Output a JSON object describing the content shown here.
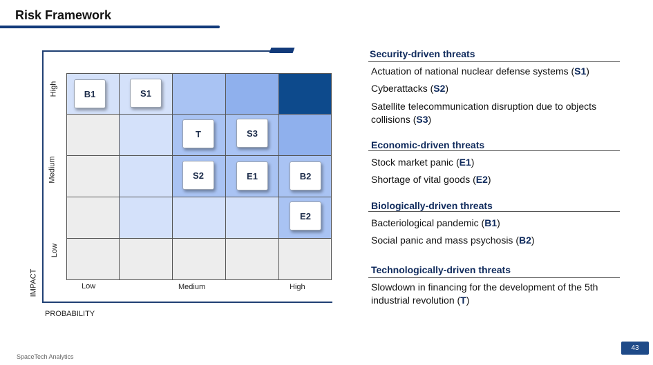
{
  "header": {
    "title": "Risk Framework"
  },
  "matrix": {
    "impact_levels": [
      "High",
      "Medium",
      "Low"
    ],
    "probability_levels": [
      "Low",
      "Medium",
      "High"
    ],
    "y_axis_title": "IMPACT",
    "x_axis_title": "PROBABILITY",
    "risks": {
      "B1": "B1",
      "S1": "S1",
      "T": "T",
      "S3": "S3",
      "S2": "S2",
      "E1": "E1",
      "B2": "B2",
      "E2": "E2"
    },
    "colors": {
      "darkest": "#0d4a8c",
      "dark": "#8fb0ed",
      "mid": "#a9c3f3",
      "light": "#d4e1fa",
      "grey": "#ededed"
    }
  },
  "categories": {
    "security": {
      "title": "Security-driven threats",
      "items": [
        {
          "text": "Actuation of national nuclear defense systems (",
          "code": "S1",
          "end": ")"
        },
        {
          "text": "Cyberattacks (",
          "code": "S2",
          "end": ")"
        },
        {
          "text": "Satellite telecommunication disruption due to objects collisions (",
          "code": "S3",
          "end": ")"
        }
      ]
    },
    "economic": {
      "title": "Economic-driven threats",
      "items": [
        {
          "text": "Stock market panic (",
          "code": "E1",
          "end": ")"
        },
        {
          "text": "Shortage of vital goods (",
          "code": "E2",
          "end": ")"
        }
      ]
    },
    "biological": {
      "title": "Biologically-driven threats",
      "items": [
        {
          "text": "Bacteriological pandemic (",
          "code": "B1",
          "end": ")"
        },
        {
          "text": "Social panic and mass psychosis (",
          "code": "B2",
          "end": ")"
        }
      ]
    },
    "technological": {
      "title": "Technologically-driven threats",
      "items": [
        {
          "text": "Slowdown in financing for the development of the 5th industrial revolution (",
          "code": "T",
          "end": ")"
        }
      ]
    }
  },
  "footer": {
    "brand": "SpaceTech Analytics",
    "page": "43"
  }
}
